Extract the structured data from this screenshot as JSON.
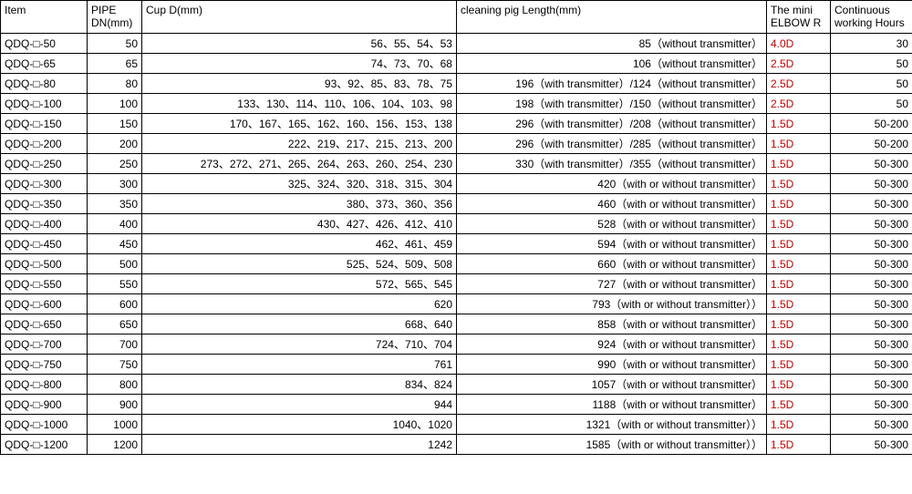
{
  "columns": [
    {
      "key": "item",
      "label": "Item",
      "class": "col-item"
    },
    {
      "key": "pipe",
      "label": "PIPE DN(mm)",
      "class": "col-pipe"
    },
    {
      "key": "cup",
      "label": "Cup D(mm)",
      "class": "col-cup"
    },
    {
      "key": "len",
      "label": "cleaning pig Length(mm)",
      "class": "col-len"
    },
    {
      "key": "elbow",
      "label": "The mini ELBOW R",
      "class": "col-elbow"
    },
    {
      "key": "hours",
      "label": "Continuous working Hours",
      "class": "col-hours"
    }
  ],
  "rows": [
    {
      "item": "QDQ-□-50",
      "pipe": "50",
      "cup": "56、55、54、53",
      "len": "85（without transmitter）",
      "elbow": "4.0D",
      "hours": "30"
    },
    {
      "item": "QDQ-□-65",
      "pipe": "65",
      "cup": "74、73、70、68",
      "len": "106（without transmitter）",
      "elbow": "2.5D",
      "hours": "50"
    },
    {
      "item": "QDQ-□-80",
      "pipe": "80",
      "cup": "93、92、85、83、78、75",
      "len": "196（with transmitter）/124（without transmitter）",
      "elbow": "2.5D",
      "hours": "50"
    },
    {
      "item": "QDQ-□-100",
      "pipe": "100",
      "cup": "133、130、114、110、106、104、103、98",
      "len": "198（with transmitter）/150（without transmitter）",
      "elbow": "2.5D",
      "hours": "50"
    },
    {
      "item": "QDQ-□-150",
      "pipe": "150",
      "cup": "170、167、165、162、160、156、153、138",
      "len": "296（with transmitter）/208（without transmitter）",
      "elbow": "1.5D",
      "hours": "50-200"
    },
    {
      "item": "QDQ-□-200",
      "pipe": "200",
      "cup": "222、219、217、215、213、200",
      "len": "296（with transmitter）/285（without transmitter）",
      "elbow": "1.5D",
      "hours": "50-200"
    },
    {
      "item": "QDQ-□-250",
      "pipe": "250",
      "cup": "273、272、271、265、264、263、260、254、230",
      "len": "330（with transmitter）/355（without transmitter）",
      "elbow": "1.5D",
      "hours": "50-300"
    },
    {
      "item": "QDQ-□-300",
      "pipe": "300",
      "cup": "325、324、320、318、315、304",
      "len": "420（with or without transmitter）",
      "elbow": "1.5D",
      "hours": "50-300"
    },
    {
      "item": "QDQ-□-350",
      "pipe": "350",
      "cup": "380、373、360、356",
      "len": "460（with or without transmitter）",
      "elbow": "1.5D",
      "hours": "50-300"
    },
    {
      "item": "QDQ-□-400",
      "pipe": "400",
      "cup": "430、427、426、412、410",
      "len": "528（with or without transmitter）",
      "elbow": "1.5D",
      "hours": "50-300"
    },
    {
      "item": "QDQ-□-450",
      "pipe": "450",
      "cup": "462、461、459",
      "len": "594（with or without transmitter）",
      "elbow": "1.5D",
      "hours": "50-300"
    },
    {
      "item": "QDQ-□-500",
      "pipe": "500",
      "cup": "525、524、509、508",
      "len": "660（with or without transmitter）",
      "elbow": "1.5D",
      "hours": "50-300"
    },
    {
      "item": "QDQ-□-550",
      "pipe": "550",
      "cup": "572、565、545",
      "len": "727（with or without transmitter）",
      "elbow": "1.5D",
      "hours": "50-300"
    },
    {
      "item": "QDQ-□-600",
      "pipe": "600",
      "cup": "620",
      "len": "793（with or without transmitter））",
      "elbow": "1.5D",
      "hours": "50-300"
    },
    {
      "item": "QDQ-□-650",
      "pipe": "650",
      "cup": "668、640",
      "len": "858（with or without transmitter）",
      "elbow": "1.5D",
      "hours": "50-300"
    },
    {
      "item": "QDQ-□-700",
      "pipe": "700",
      "cup": "724、710、704",
      "len": "924（with or without transmitter）",
      "elbow": "1.5D",
      "hours": "50-300"
    },
    {
      "item": "QDQ-□-750",
      "pipe": "750",
      "cup": "761",
      "len": "990（with or without transmitter）",
      "elbow": "1.5D",
      "hours": "50-300"
    },
    {
      "item": "QDQ-□-800",
      "pipe": "800",
      "cup": "834、824",
      "len": "1057（with or without transmitter）",
      "elbow": "1.5D",
      "hours": "50-300"
    },
    {
      "item": "QDQ-□-900",
      "pipe": "900",
      "cup": "944",
      "len": "1188（with or without transmitter）",
      "elbow": "1.5D",
      "hours": "50-300"
    },
    {
      "item": "QDQ-□-1000",
      "pipe": "1000",
      "cup": "1040、1020",
      "len": "1321（with or without transmitter））",
      "elbow": "1.5D",
      "hours": "50-300"
    },
    {
      "item": "QDQ-□-1200",
      "pipe": "1200",
      "cup": "1242",
      "len": "1585（with or without transmitter））",
      "elbow": "1.5D",
      "hours": "50-300"
    }
  ]
}
